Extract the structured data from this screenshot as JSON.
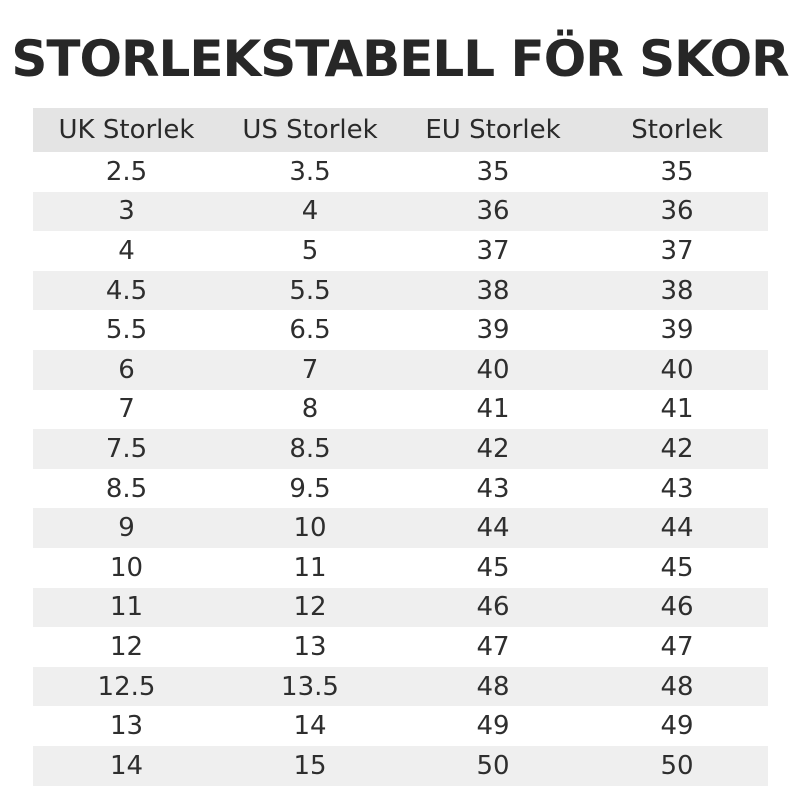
{
  "title": "STORLEKSTABELL FÖR SKOR",
  "table": {
    "headers": [
      "UK Storlek",
      "US Storlek",
      "EU Storlek",
      "Storlek"
    ],
    "rows": [
      [
        "2.5",
        "3.5",
        "35",
        "35"
      ],
      [
        "3",
        "4",
        "36",
        "36"
      ],
      [
        "4",
        "5",
        "37",
        "37"
      ],
      [
        "4.5",
        "5.5",
        "38",
        "38"
      ],
      [
        "5.5",
        "6.5",
        "39",
        "39"
      ],
      [
        "6",
        "7",
        "40",
        "40"
      ],
      [
        "7",
        "8",
        "41",
        "41"
      ],
      [
        "7.5",
        "8.5",
        "42",
        "42"
      ],
      [
        "8.5",
        "9.5",
        "43",
        "43"
      ],
      [
        "9",
        "10",
        "44",
        "44"
      ],
      [
        "10",
        "11",
        "45",
        "45"
      ],
      [
        "11",
        "12",
        "46",
        "46"
      ],
      [
        "12",
        "13",
        "47",
        "47"
      ],
      [
        "12.5",
        "13.5",
        "48",
        "48"
      ],
      [
        "13",
        "14",
        "49",
        "49"
      ],
      [
        "14",
        "15",
        "50",
        "50"
      ]
    ]
  },
  "colors": {
    "header_background": "#e4e4e4",
    "stripe_background": "#efefef",
    "text": "#2a2a2a"
  }
}
